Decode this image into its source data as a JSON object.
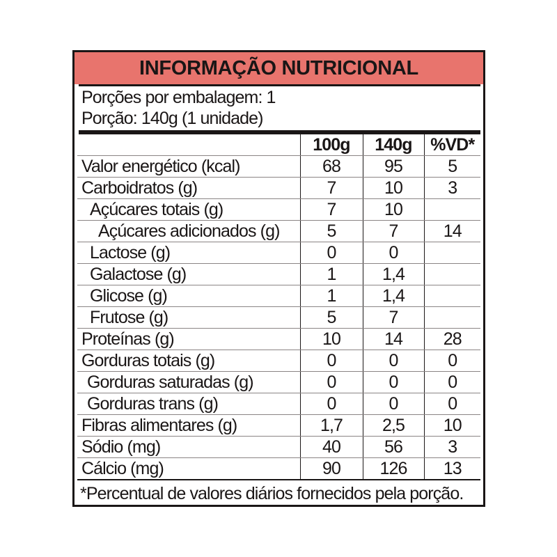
{
  "title": "INFORMAÇÃO NUTRICIONAL",
  "portions_per_package": "Porções por embalagem: 1",
  "portion": "Porção: 140g (1 unidade)",
  "columns": [
    "",
    "100g",
    "140g",
    "%VD*"
  ],
  "rows": [
    {
      "label": "Valor energético (kcal)",
      "v100": "68",
      "v140": "95",
      "vd": "5",
      "indent": 0
    },
    {
      "label": "Carboidratos (g)",
      "v100": "7",
      "v140": "10",
      "vd": "3",
      "indent": 0
    },
    {
      "label": "Açúcares totais (g)",
      "v100": "7",
      "v140": "10",
      "vd": "",
      "indent": 1
    },
    {
      "label": "Açúcares adicionados (g)",
      "v100": "5",
      "v140": "7",
      "vd": "14",
      "indent": 2
    },
    {
      "label": "Lactose (g)",
      "v100": "0",
      "v140": "0",
      "vd": "",
      "indent": 1
    },
    {
      "label": "Galactose (g)",
      "v100": "1",
      "v140": "1,4",
      "vd": "",
      "indent": 1
    },
    {
      "label": "Glicose (g)",
      "v100": "1",
      "v140": "1,4",
      "vd": "",
      "indent": 1
    },
    {
      "label": "Frutose (g)",
      "v100": "5",
      "v140": "7",
      "vd": "",
      "indent": 1
    },
    {
      "label": "Proteínas (g)",
      "v100": "10",
      "v140": "14",
      "vd": "28",
      "indent": 0
    },
    {
      "label": "Gorduras totais (g)",
      "v100": "0",
      "v140": "0",
      "vd": "0",
      "indent": 0
    },
    {
      "label": "Gorduras saturadas (g)",
      "v100": "0",
      "v140": "0",
      "vd": "0",
      "indent": 3
    },
    {
      "label": "Gorduras trans (g)",
      "v100": "0",
      "v140": "0",
      "vd": "0",
      "indent": 3
    },
    {
      "label": "Fibras alimentares (g)",
      "v100": "1,7",
      "v140": "2,5",
      "vd": "10",
      "indent": 0
    },
    {
      "label": "Sódio (mg)",
      "v100": "40",
      "v140": "56",
      "vd": "3",
      "indent": 0
    },
    {
      "label": "Cálcio (mg)",
      "v100": "90",
      "v140": "126",
      "vd": "13",
      "indent": 0
    }
  ],
  "footnote": "*Percentual de valores diários fornecidos pela porção.",
  "colors": {
    "header_bg": "#e8746d",
    "text": "#1a1616"
  }
}
